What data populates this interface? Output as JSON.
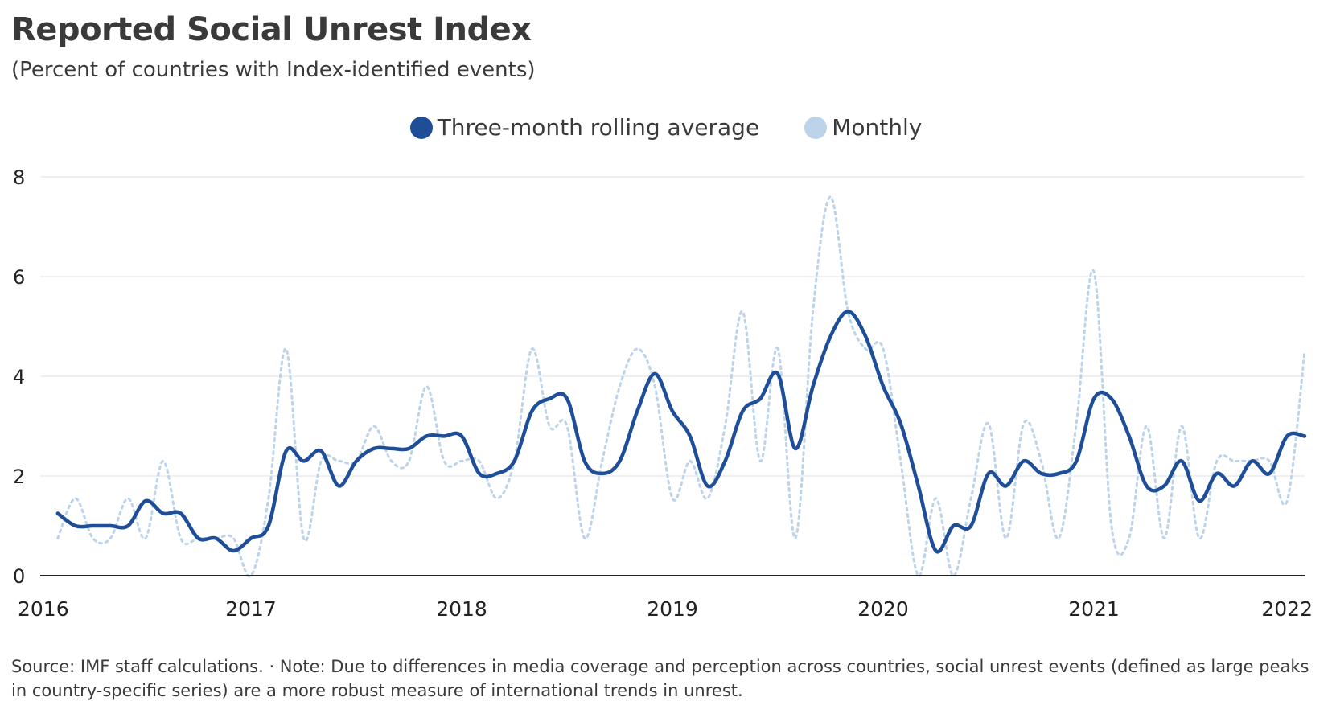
{
  "header": {
    "title": "Reported Social Unrest Index",
    "subtitle": "(Percent of countries with Index-identified events)"
  },
  "colors": {
    "rolling": "#1f4e99",
    "monthly": "#bcd3ea",
    "grid": "#ececec",
    "axis": "#222222"
  },
  "chart_data": {
    "type": "line",
    "title": "Reported Social Unrest Index",
    "subtitle": "(Percent of countries with Index-identified events)",
    "xlabel": "",
    "ylabel": "",
    "x_range": [
      "2016-01",
      "2022-01"
    ],
    "x_ticks": [
      "2016",
      "2017",
      "2018",
      "2019",
      "2020",
      "2021",
      "2022"
    ],
    "ylim": [
      0,
      8
    ],
    "y_ticks": [
      "0",
      "2",
      "4",
      "6",
      "8"
    ],
    "grid": "horizontal",
    "legend": "top-center",
    "series": [
      {
        "name": "Three-month rolling average",
        "style": "solid",
        "x": [
          "2016-02",
          "2016-03",
          "2016-04",
          "2016-05",
          "2016-06",
          "2016-07",
          "2016-08",
          "2016-09",
          "2016-10",
          "2016-11",
          "2016-12",
          "2017-01",
          "2017-02",
          "2017-03",
          "2017-04",
          "2017-05",
          "2017-06",
          "2017-07",
          "2017-08",
          "2017-09",
          "2017-10",
          "2017-11",
          "2017-12",
          "2018-01",
          "2018-02",
          "2018-03",
          "2018-04",
          "2018-05",
          "2018-06",
          "2018-07",
          "2018-08",
          "2018-09",
          "2018-10",
          "2018-11",
          "2018-12",
          "2019-01",
          "2019-02",
          "2019-03",
          "2019-04",
          "2019-05",
          "2019-06",
          "2019-07",
          "2019-08",
          "2019-09",
          "2019-10",
          "2019-11",
          "2019-12",
          "2020-01",
          "2020-02",
          "2020-03",
          "2020-04",
          "2020-05",
          "2020-06",
          "2020-07",
          "2020-08",
          "2020-09",
          "2020-10",
          "2020-11",
          "2020-12",
          "2021-01",
          "2021-02",
          "2021-03",
          "2021-04",
          "2021-05",
          "2021-06",
          "2021-07",
          "2021-08",
          "2021-09",
          "2021-10",
          "2021-11",
          "2021-12",
          "2022-01"
        ],
        "values": [
          1.25,
          1.0,
          1.0,
          1.0,
          1.0,
          1.5,
          1.25,
          1.25,
          0.75,
          0.75,
          0.5,
          0.75,
          1.0,
          2.5,
          2.3,
          2.5,
          1.8,
          2.3,
          2.55,
          2.55,
          2.55,
          2.8,
          2.8,
          2.8,
          2.05,
          2.05,
          2.3,
          3.3,
          3.55,
          3.55,
          2.3,
          2.05,
          2.3,
          3.3,
          4.05,
          3.3,
          2.8,
          1.8,
          2.3,
          3.3,
          3.55,
          4.05,
          2.55,
          3.8,
          4.8,
          5.3,
          4.8,
          3.8,
          3.05,
          1.8,
          0.5,
          1.0,
          1.0,
          2.05,
          1.8,
          2.3,
          2.05,
          2.05,
          2.3,
          3.55,
          3.55,
          2.8,
          1.8,
          1.8,
          2.3,
          1.5,
          2.05,
          1.8,
          2.3,
          2.05,
          2.8,
          2.8
        ]
      },
      {
        "name": "Monthly",
        "style": "dotted",
        "x": [
          "2016-02",
          "2016-03",
          "2016-04",
          "2016-05",
          "2016-06",
          "2016-07",
          "2016-08",
          "2016-09",
          "2016-10",
          "2016-11",
          "2016-12",
          "2017-01",
          "2017-02",
          "2017-03",
          "2017-04",
          "2017-05",
          "2017-06",
          "2017-07",
          "2017-08",
          "2017-09",
          "2017-10",
          "2017-11",
          "2017-12",
          "2018-01",
          "2018-02",
          "2018-03",
          "2018-04",
          "2018-05",
          "2018-06",
          "2018-07",
          "2018-08",
          "2018-09",
          "2018-10",
          "2018-11",
          "2018-12",
          "2019-01",
          "2019-02",
          "2019-03",
          "2019-04",
          "2019-05",
          "2019-06",
          "2019-07",
          "2019-08",
          "2019-09",
          "2019-10",
          "2019-11",
          "2019-12",
          "2020-01",
          "2020-02",
          "2020-03",
          "2020-04",
          "2020-05",
          "2020-06",
          "2020-07",
          "2020-08",
          "2020-09",
          "2020-10",
          "2020-11",
          "2020-12",
          "2021-01",
          "2021-02",
          "2021-03",
          "2021-04",
          "2021-05",
          "2021-06",
          "2021-07",
          "2021-08",
          "2021-09",
          "2021-10",
          "2021-11",
          "2021-12",
          "2022-01"
        ],
        "values": [
          0.75,
          1.55,
          0.75,
          0.75,
          1.55,
          0.75,
          2.3,
          0.75,
          0.75,
          0.75,
          0.75,
          0.0,
          1.55,
          4.55,
          0.75,
          2.3,
          2.3,
          2.3,
          3.0,
          2.3,
          2.3,
          3.8,
          2.3,
          2.3,
          2.3,
          1.55,
          2.3,
          4.55,
          3.0,
          3.0,
          0.75,
          2.3,
          3.8,
          4.55,
          3.8,
          1.55,
          2.3,
          1.55,
          3.0,
          5.3,
          2.3,
          4.55,
          0.75,
          5.3,
          7.6,
          5.3,
          4.55,
          4.55,
          2.3,
          0.0,
          1.55,
          0.0,
          1.55,
          3.05,
          0.75,
          3.05,
          2.3,
          0.75,
          3.05,
          6.1,
          1.0,
          0.75,
          3.0,
          0.75,
          3.0,
          0.75,
          2.3,
          2.3,
          2.3,
          2.3,
          1.5,
          4.5
        ]
      }
    ]
  },
  "footer": {
    "source": "Source: IMF staff calculations. · Note: Due to differences in media coverage and perception across countries, social unrest events (defined as large peaks in country-specific series) are a more robust measure of international trends in unrest."
  }
}
